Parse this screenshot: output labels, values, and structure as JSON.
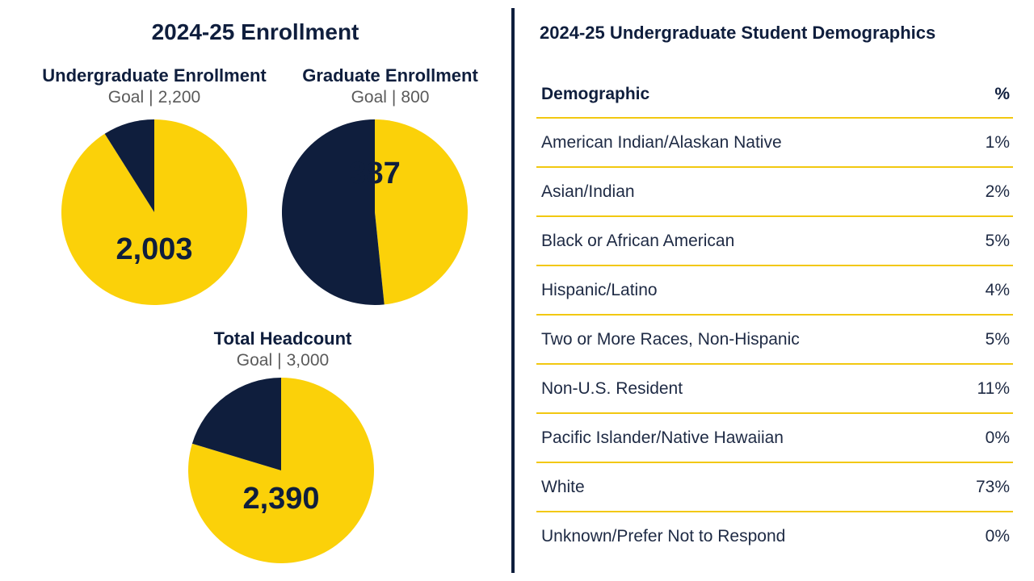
{
  "colors": {
    "enrolled": "#fbd109",
    "remaining": "#0f1e3d",
    "rule": "#f2c810"
  },
  "left_title": "2024-25 Enrollment",
  "goal_word": "Goal",
  "goal_separator": "|",
  "chart_data": [
    {
      "type": "pie",
      "title": "Undergraduate Enrollment",
      "goal": "2,200",
      "goal_value": 2200,
      "value_label": "2,003",
      "value": 2003
    },
    {
      "type": "pie",
      "title": "Graduate Enrollment",
      "goal": "800",
      "goal_value": 800,
      "value_label": "387",
      "value": 387
    },
    {
      "type": "pie",
      "title": "Total Headcount",
      "goal": "3,000",
      "goal_value": 3000,
      "value_label": "2,390",
      "value": 2390
    },
    {
      "type": "table",
      "title": "2024-25 Undergraduate Student Demographics",
      "columns": [
        "Demographic",
        "%"
      ],
      "rows": [
        {
          "label": "American Indian/Alaskan Native",
          "pct": "1%"
        },
        {
          "label": "Asian/Indian",
          "pct": "2%"
        },
        {
          "label": "Black or African American",
          "pct": "5%"
        },
        {
          "label": "Hispanic/Latino",
          "pct": "4%"
        },
        {
          "label": "Two or More Races, Non-Hispanic",
          "pct": "5%"
        },
        {
          "label": "Non-U.S. Resident",
          "pct": "11%"
        },
        {
          "label": "Pacific Islander/Native Hawaiian",
          "pct": "0%"
        },
        {
          "label": "White",
          "pct": "73%"
        },
        {
          "label": "Unknown/Prefer Not to Respond",
          "pct": "0%"
        }
      ]
    }
  ]
}
